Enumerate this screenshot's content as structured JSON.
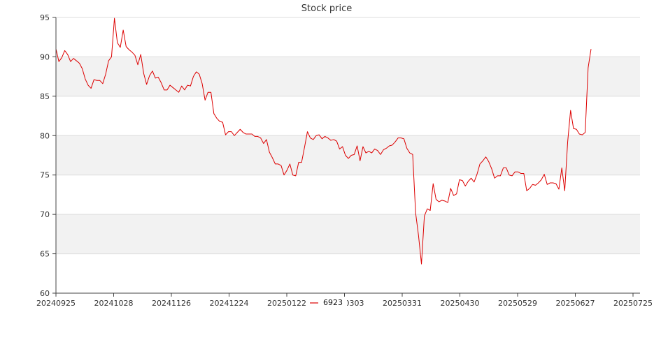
{
  "chart_data": {
    "type": "line",
    "title": "Stock price",
    "xlabel": "",
    "ylabel": "",
    "ylim": [
      60,
      95
    ],
    "y_ticks": [
      60,
      65,
      70,
      75,
      80,
      85,
      90,
      95
    ],
    "x_ticks": [
      "20240925",
      "20241028",
      "20241126",
      "20241224",
      "20250122",
      "20250303",
      "20250331",
      "20250430",
      "20250529",
      "20250627",
      "20250725"
    ],
    "grid": "horizontal",
    "banded_background": true,
    "legend_position": "bottom-center",
    "colors": {
      "line": "#dd0000",
      "band": "#f2f2f2",
      "grid": "#dddddd",
      "axis": "#444444"
    },
    "series": [
      {
        "name": "6923",
        "values": [
          91.0,
          89.4,
          89.9,
          90.8,
          90.3,
          89.4,
          89.8,
          89.5,
          89.2,
          88.5,
          87.2,
          86.4,
          86.0,
          87.1,
          87.0,
          87.0,
          86.6,
          87.8,
          89.5,
          90.0,
          94.9,
          91.8,
          91.2,
          93.4,
          91.3,
          90.9,
          90.6,
          90.2,
          89.0,
          90.3,
          87.9,
          86.5,
          87.6,
          88.2,
          87.3,
          87.4,
          86.7,
          85.8,
          85.8,
          86.4,
          86.1,
          85.8,
          85.5,
          86.3,
          85.8,
          86.4,
          86.3,
          87.5,
          88.1,
          87.8,
          86.6,
          84.5,
          85.5,
          85.5,
          82.8,
          82.2,
          81.8,
          81.7,
          80.1,
          80.5,
          80.5,
          80.0,
          80.4,
          80.8,
          80.4,
          80.2,
          80.2,
          80.2,
          79.9,
          79.9,
          79.7,
          79.0,
          79.5,
          77.9,
          77.2,
          76.4,
          76.4,
          76.2,
          75.0,
          75.6,
          76.4,
          75.0,
          74.9,
          76.6,
          76.6,
          78.5,
          80.5,
          79.7,
          79.5,
          80.0,
          80.1,
          79.6,
          79.9,
          79.7,
          79.4,
          79.5,
          79.3,
          78.3,
          78.6,
          77.5,
          77.1,
          77.5,
          77.6,
          78.7,
          76.8,
          78.6,
          77.8,
          78.0,
          77.8,
          78.3,
          78.1,
          77.6,
          78.2,
          78.4,
          78.7,
          78.8,
          79.2,
          79.7,
          79.7,
          79.6,
          78.4,
          77.8,
          77.6,
          70.2,
          67.3,
          63.7,
          69.8,
          70.7,
          70.5,
          73.9,
          71.9,
          71.6,
          71.8,
          71.7,
          71.5,
          73.3,
          72.4,
          72.6,
          74.4,
          74.3,
          73.6,
          74.2,
          74.6,
          74.1,
          75.1,
          76.4,
          76.8,
          77.3,
          76.7,
          75.8,
          74.6,
          74.9,
          74.9,
          75.9,
          75.9,
          75.0,
          74.9,
          75.4,
          75.4,
          75.2,
          75.2,
          73.0,
          73.3,
          73.8,
          73.7,
          74.0,
          74.4,
          75.1,
          73.8,
          74.0,
          74.0,
          73.9,
          73.2,
          75.9,
          73.0,
          79.2,
          83.2,
          80.9,
          80.8,
          80.2,
          80.1,
          80.4,
          88.6,
          91.0
        ]
      }
    ]
  }
}
